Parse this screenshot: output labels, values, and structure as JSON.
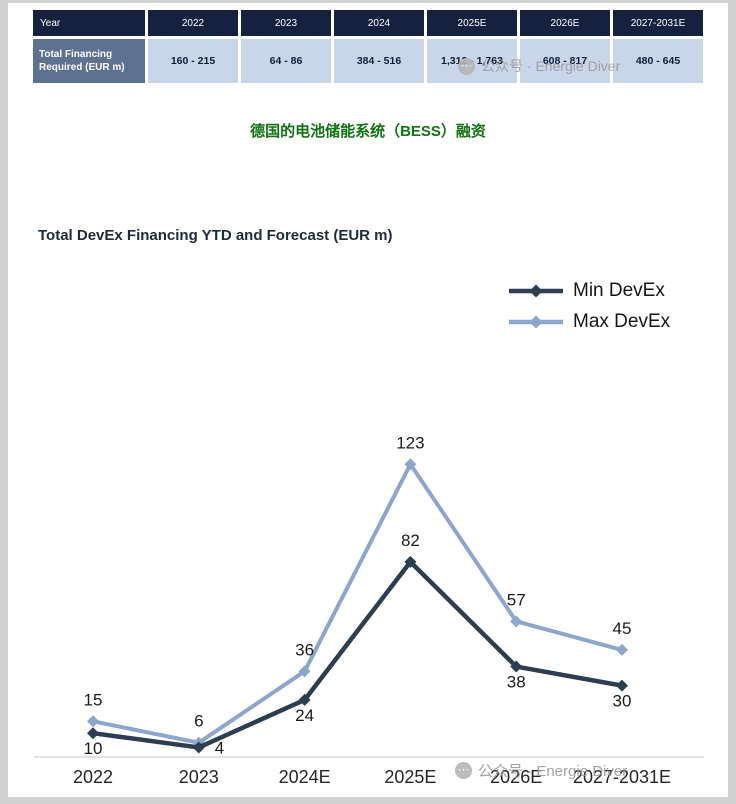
{
  "page": {
    "watermark": "公众号 · Energie Diver"
  },
  "table": {
    "headers": [
      "Year",
      "2022",
      "2023",
      "2024",
      "2025E",
      "2026E",
      "2027-2031E"
    ],
    "row_label": "Total Financing Required (EUR m)",
    "values": [
      "160 - 215",
      "64 - 86",
      "384 - 516",
      "1,312 - 1,763",
      "608 - 817",
      "480 - 645"
    ]
  },
  "subtitle": "德国的电池储能系统（BESS）融资",
  "chart_data": {
    "type": "line",
    "title": "Total DevEx Financing YTD and Forecast (EUR m)",
    "categories": [
      "2022",
      "2023",
      "2024E",
      "2025E",
      "2026E",
      "2027-2031E"
    ],
    "series": [
      {
        "name": "Min DevEx",
        "color": "#2c3e50",
        "values": [
          10,
          4,
          24,
          82,
          38,
          30
        ],
        "label_positions": [
          "below",
          "right",
          "below",
          "above",
          "below",
          "below"
        ]
      },
      {
        "name": "Max DevEx",
        "color": "#8ca7cb",
        "values": [
          15,
          6,
          36,
          123,
          57,
          45
        ],
        "label_positions": [
          "above",
          "above",
          "above",
          "above",
          "above",
          "above"
        ]
      }
    ],
    "ylim": [
      0,
      140
    ],
    "grid": false,
    "legend_position": "top-right",
    "marker": "diamond"
  },
  "colors": {
    "table_header_bg": "#16213f",
    "table_row_label_bg": "#5d7190",
    "table_cell_bg": "#c9d6e9",
    "table_cell_text": "#101d38",
    "subtitle_green": "#127312",
    "chart_title": "#1c2b3d",
    "axis_line": "#d9d9d9",
    "watermark_gray": "#9a9a9a"
  }
}
